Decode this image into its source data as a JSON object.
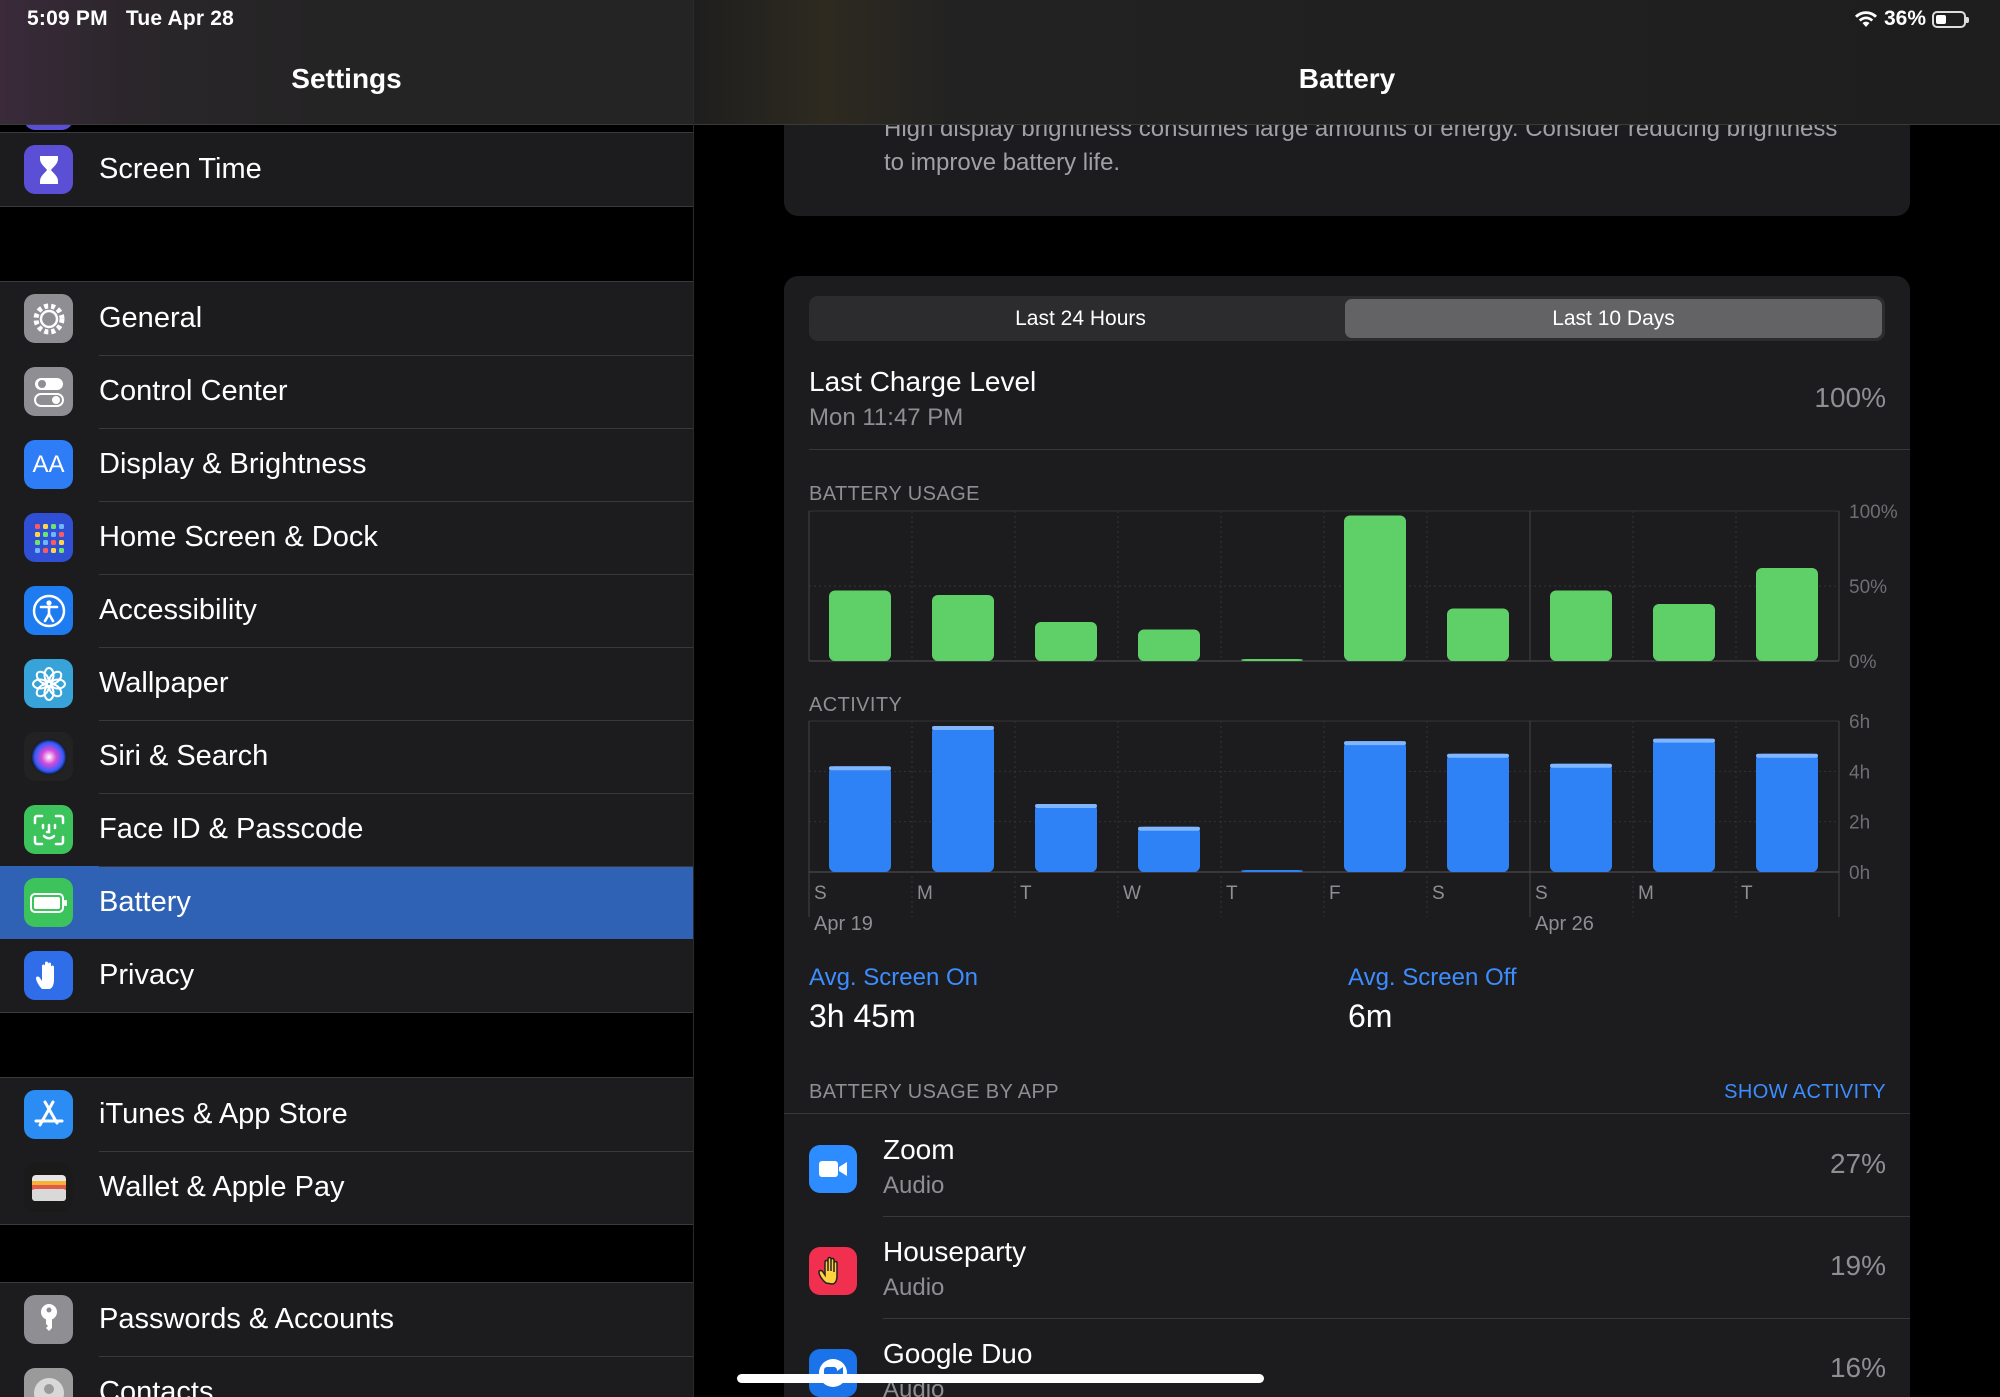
{
  "status": {
    "time": "5:09 PM",
    "date": "Tue Apr 28",
    "battery_pct": "36%"
  },
  "sidebar": {
    "title": "Settings",
    "groups": [
      {
        "items": [
          {
            "label": "Screen Time",
            "icon": "hourglass-icon",
            "color": "#5b4fd6"
          }
        ]
      },
      {
        "items": [
          {
            "label": "General",
            "icon": "gear-icon",
            "color": "#8e8e93"
          },
          {
            "label": "Control Center",
            "icon": "toggles-icon",
            "color": "#8e8e93"
          },
          {
            "label": "Display & Brightness",
            "icon": "text-size-icon",
            "color": "#2e7cf6"
          },
          {
            "label": "Home Screen & Dock",
            "icon": "app-grid-icon",
            "color": "#2f50d4"
          },
          {
            "label": "Accessibility",
            "icon": "accessibility-icon",
            "color": "#1f7cf0"
          },
          {
            "label": "Wallpaper",
            "icon": "flower-icon",
            "color": "#38a3d8"
          },
          {
            "label": "Siri & Search",
            "icon": "siri-icon",
            "color": "#222"
          },
          {
            "label": "Face ID & Passcode",
            "icon": "face-id-icon",
            "color": "#3cc35c"
          },
          {
            "label": "Battery",
            "icon": "battery-icon",
            "color": "#3cc35c",
            "selected": true
          },
          {
            "label": "Privacy",
            "icon": "hand-icon",
            "color": "#2f6ee8"
          }
        ]
      },
      {
        "items": [
          {
            "label": "iTunes & App Store",
            "icon": "app-store-icon",
            "color": "#2b8cf3"
          },
          {
            "label": "Wallet & Apple Pay",
            "icon": "wallet-icon",
            "color": "#1a1a1a"
          }
        ]
      },
      {
        "items": [
          {
            "label": "Passwords & Accounts",
            "icon": "key-icon",
            "color": "#8e8e93"
          },
          {
            "label": "Contacts",
            "icon": "contacts-icon",
            "color": "#9a9a9a"
          }
        ]
      }
    ]
  },
  "detail": {
    "title": "Battery",
    "tip": "High display brightness consumes large amounts of energy. Consider reducing brightness to improve battery life.",
    "segments": [
      "Last 24 Hours",
      "Last 10 Days"
    ],
    "active_segment": 1,
    "last_charge": {
      "title": "Last Charge Level",
      "time": "Mon 11:47 PM",
      "value": "100%"
    },
    "battery_usage_label": "BATTERY USAGE",
    "activity_label": "ACTIVITY",
    "avg_on": {
      "label": "Avg. Screen On",
      "value": "3h 45m"
    },
    "avg_off": {
      "label": "Avg. Screen Off",
      "value": "6m"
    },
    "by_app_label": "BATTERY USAGE BY APP",
    "show_activity": "SHOW ACTIVITY",
    "apps": [
      {
        "name": "Zoom",
        "sub": "Audio",
        "pct": "27%",
        "icon": "zoom-icon",
        "color": "#2d8cff"
      },
      {
        "name": "Houseparty",
        "sub": "Audio",
        "pct": "19%",
        "icon": "houseparty-icon",
        "color": "#f0304e"
      },
      {
        "name": "Google Duo",
        "sub": "Audio",
        "pct": "16%",
        "icon": "google-duo-icon",
        "color": "#1a73e8"
      }
    ]
  },
  "chart_data": [
    {
      "type": "bar",
      "title": "BATTERY USAGE",
      "categories": [
        "S",
        "M",
        "T",
        "W",
        "T",
        "F",
        "S",
        "S",
        "M",
        "T"
      ],
      "date_labels": [
        {
          "index": 0,
          "text": "Apr 19"
        },
        {
          "index": 7,
          "text": "Apr 26"
        }
      ],
      "values": [
        47,
        44,
        26,
        21,
        0,
        97,
        35,
        47,
        38,
        62
      ],
      "ylim": [
        0,
        100
      ],
      "ytick_labels": [
        "100%",
        "50%",
        "0%"
      ],
      "color": "#5fd068",
      "grid": true
    },
    {
      "type": "bar",
      "title": "ACTIVITY",
      "categories": [
        "S",
        "M",
        "T",
        "W",
        "T",
        "F",
        "S",
        "S",
        "M",
        "T"
      ],
      "date_labels": [
        {
          "index": 0,
          "text": "Apr 19"
        },
        {
          "index": 7,
          "text": "Apr 26"
        }
      ],
      "values": [
        4.2,
        5.8,
        2.7,
        1.8,
        0.05,
        5.2,
        4.7,
        4.3,
        5.3,
        4.7
      ],
      "ylim": [
        0,
        6
      ],
      "ytick_labels": [
        "6h",
        "4h",
        "2h",
        "0h"
      ],
      "color": "#2f82f6",
      "grid": true
    }
  ]
}
